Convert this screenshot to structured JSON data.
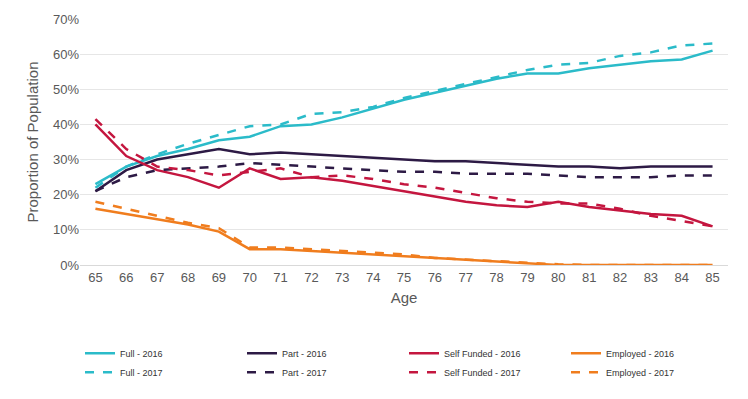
{
  "chart_data": {
    "type": "line",
    "x_label": "Age",
    "y_label": "Proportion of Population",
    "x": [
      65,
      66,
      67,
      68,
      69,
      70,
      71,
      72,
      73,
      74,
      75,
      76,
      77,
      78,
      79,
      80,
      81,
      82,
      83,
      84,
      85
    ],
    "xlim": [
      64.5,
      85.5
    ],
    "xticks": [
      65,
      66,
      67,
      68,
      69,
      70,
      71,
      72,
      73,
      74,
      75,
      76,
      77,
      78,
      79,
      80,
      81,
      82,
      83,
      84,
      85
    ],
    "ylim": [
      0,
      70
    ],
    "yticks": [
      {
        "value": 0,
        "label": "0%"
      },
      {
        "value": 10,
        "label": "10%"
      },
      {
        "value": 20,
        "label": "20%"
      },
      {
        "value": 30,
        "label": "30%"
      },
      {
        "value": 40,
        "label": "40%"
      },
      {
        "value": 50,
        "label": "50%"
      },
      {
        "value": 60,
        "label": "60%"
      },
      {
        "value": 70,
        "label": "70%"
      }
    ],
    "grid": true,
    "legend": "bottom",
    "series": [
      {
        "name": "Full - 2016",
        "color": "#2bbbc9",
        "line_style": "solid",
        "values": [
          23,
          28,
          31,
          33,
          35.5,
          36.5,
          39.5,
          40,
          42,
          44.5,
          47,
          49,
          51,
          53,
          54.5,
          54.5,
          56,
          57,
          58,
          58.5,
          61
        ]
      },
      {
        "name": "Part - 2016",
        "color": "#2d1a45",
        "line_style": "solid",
        "values": [
          21,
          27,
          30,
          31.5,
          33,
          31.5,
          32,
          31.5,
          31,
          30.5,
          30,
          29.5,
          29.5,
          29,
          28.5,
          28,
          28,
          27.5,
          28,
          28,
          28
        ]
      },
      {
        "name": "Self Funded - 2016",
        "color": "#c4163f",
        "line_style": "solid",
        "values": [
          40,
          31,
          27,
          25,
          22,
          27.5,
          24.5,
          25,
          24,
          22.5,
          21,
          19.5,
          18,
          17,
          16.5,
          18,
          16.5,
          15.5,
          14.5,
          14,
          11
        ]
      },
      {
        "name": "Employed - 2016",
        "color": "#f07d1e",
        "line_style": "solid",
        "values": [
          16,
          14.5,
          13,
          11.5,
          9.5,
          4.5,
          4.5,
          4,
          3.5,
          3,
          2.5,
          2,
          1.5,
          1,
          0.5,
          0,
          0,
          0,
          0,
          0,
          0
        ]
      },
      {
        "name": "Full - 2017",
        "color": "#2bbbc9",
        "line_style": "dash",
        "values": [
          22,
          28,
          31.5,
          34.5,
          37,
          39.5,
          40,
          43,
          43.5,
          45,
          47.5,
          49.5,
          51.5,
          53.5,
          55.5,
          57,
          57.5,
          59.5,
          60.5,
          62.5,
          63
        ]
      },
      {
        "name": "Part - 2017",
        "color": "#2d1a45",
        "line_style": "dash",
        "values": [
          21,
          25,
          27,
          27.5,
          28,
          29,
          28.5,
          28,
          27.5,
          27,
          26.5,
          26.5,
          26,
          26,
          26,
          25.5,
          25,
          25,
          25,
          25.5,
          25.5
        ]
      },
      {
        "name": "Self Funded - 2017",
        "color": "#c4163f",
        "line_style": "dash",
        "values": [
          41.5,
          33,
          28,
          27,
          25.5,
          26.5,
          27.5,
          25,
          25.5,
          24.5,
          23,
          22,
          20.5,
          19,
          18,
          17.5,
          17.5,
          16,
          14,
          12.5,
          11
        ]
      },
      {
        "name": "Employed - 2017",
        "color": "#f07d1e",
        "line_style": "dash",
        "values": [
          18,
          16,
          14,
          12,
          10.5,
          5,
          5,
          4.5,
          4,
          3.5,
          3,
          2,
          1.5,
          1,
          0.5,
          0.2,
          0,
          0,
          0,
          0,
          0
        ]
      }
    ]
  }
}
